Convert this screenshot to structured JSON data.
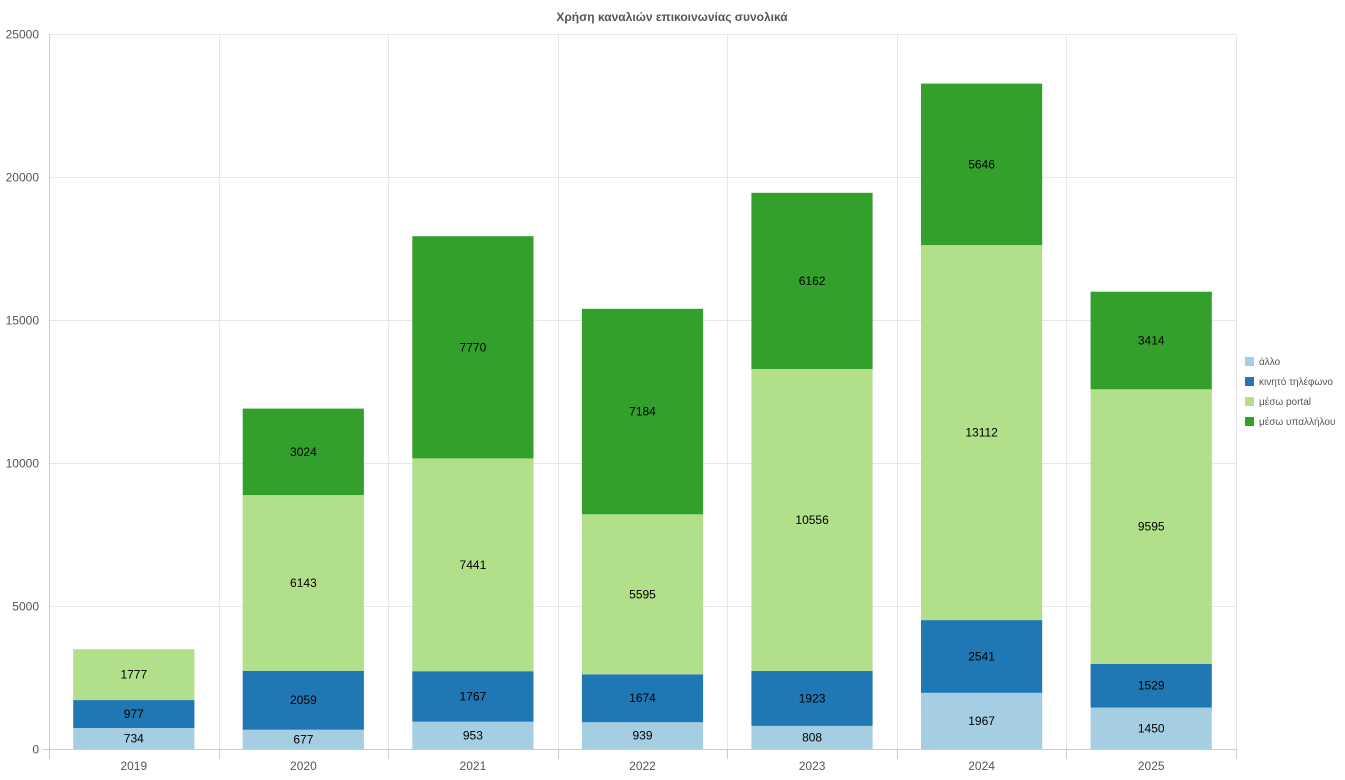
{
  "chart_data": {
    "type": "bar",
    "stacked": true,
    "title": "Χρήση καναλιών επικοινωνίας συνολικά",
    "categories": [
      "2019",
      "2020",
      "2021",
      "2022",
      "2023",
      "2024",
      "2025"
    ],
    "series": [
      {
        "name": "άλλο",
        "color": "#a6cee3",
        "values": [
          734,
          677,
          953,
          939,
          808,
          1967,
          1450
        ]
      },
      {
        "name": "κινητό τηλέφωνο",
        "color": "#1f78b4",
        "values": [
          977,
          2059,
          1767,
          1674,
          1923,
          2541,
          1529
        ]
      },
      {
        "name": "μέσω portal",
        "color": "#b2df8a",
        "values": [
          1777,
          6143,
          7441,
          5595,
          10556,
          13112,
          9595
        ]
      },
      {
        "name": "μέσω υπαλλήλου",
        "color": "#33a02c",
        "values": [
          null,
          3024,
          7770,
          7184,
          6162,
          5646,
          3414
        ]
      }
    ],
    "ylim": [
      0,
      25000
    ],
    "yticks": [
      "0",
      "5000",
      "10000",
      "15000",
      "20000",
      "25000"
    ],
    "grid": true,
    "legend": "right"
  }
}
